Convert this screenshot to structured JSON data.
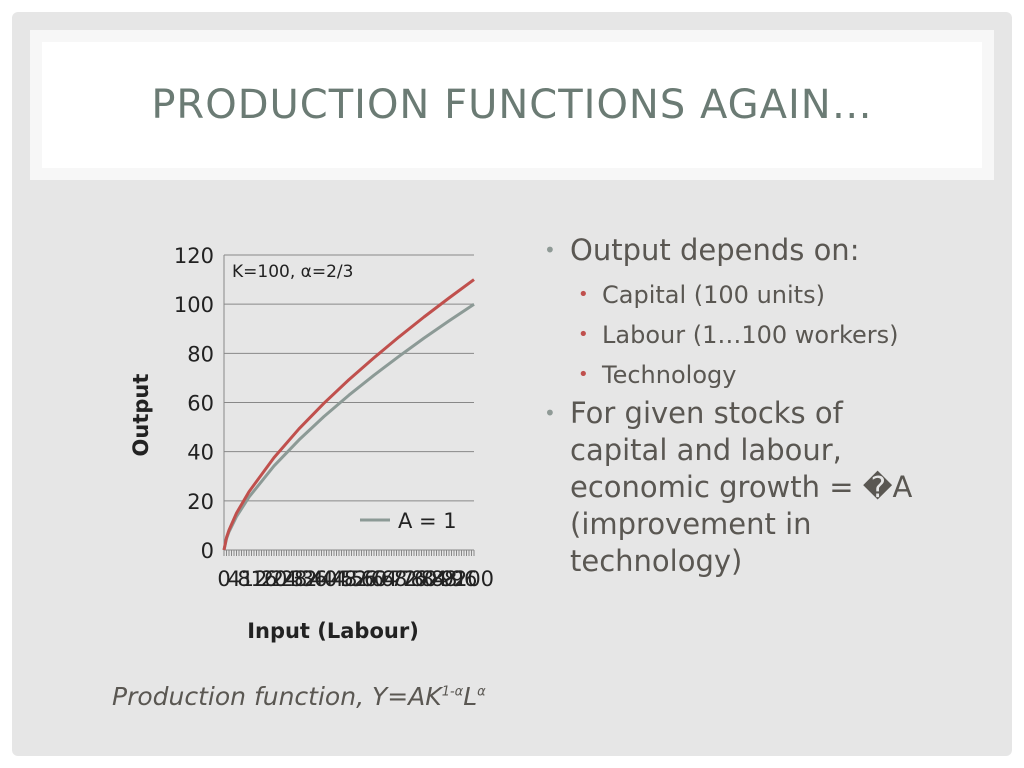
{
  "slide": {
    "title": "PRODUCTION FUNCTIONS AGAIN…",
    "bullets": [
      {
        "text": "Output depends on:",
        "sub": [
          "Capital (100 units)",
          "Labour (1…100 workers)",
          "Technology"
        ]
      },
      {
        "lines": [
          "For given stocks of",
          "capital and labour,",
          "economic growth = �A",
          "(improvement  in",
          "technology)"
        ]
      }
    ],
    "caption": {
      "main": "Production function, Y=AK",
      "exp1": "1-α",
      "mid": "L",
      "exp2": "α"
    }
  },
  "colors": {
    "series_gray": "#8c9a96",
    "series_red": "#c0504d",
    "gridline": "#888888",
    "text": "#5a5752"
  },
  "chart_data": {
    "type": "line",
    "annotation": "K=100, α=2/3",
    "xlabel": "Input (Labour)",
    "ylabel": "Output",
    "ylim": [
      0,
      120
    ],
    "yticks": [
      "0",
      "20",
      "40",
      "60",
      "80",
      "100",
      "120"
    ],
    "xlim": [
      0,
      100
    ],
    "grid": true,
    "legend_position": "bottom-right",
    "series": [
      {
        "name": "A = 1",
        "x": [
          0,
          1,
          2,
          5,
          10,
          20,
          30,
          40,
          50,
          60,
          70,
          80,
          90,
          100
        ],
        "y": [
          0,
          4.6,
          7.4,
          13.6,
          21.5,
          34.2,
          44.8,
          54.3,
          63.0,
          71.1,
          78.8,
          86.2,
          93.2,
          100
        ]
      },
      {
        "x": [
          0,
          1,
          2,
          5,
          10,
          20,
          30,
          40,
          50,
          60,
          70,
          80,
          90,
          100
        ],
        "y": [
          0,
          5.1,
          8.1,
          15.0,
          23.7,
          37.6,
          49.3,
          59.7,
          69.3,
          78.2,
          86.7,
          94.8,
          102.5,
          110
        ]
      }
    ]
  }
}
